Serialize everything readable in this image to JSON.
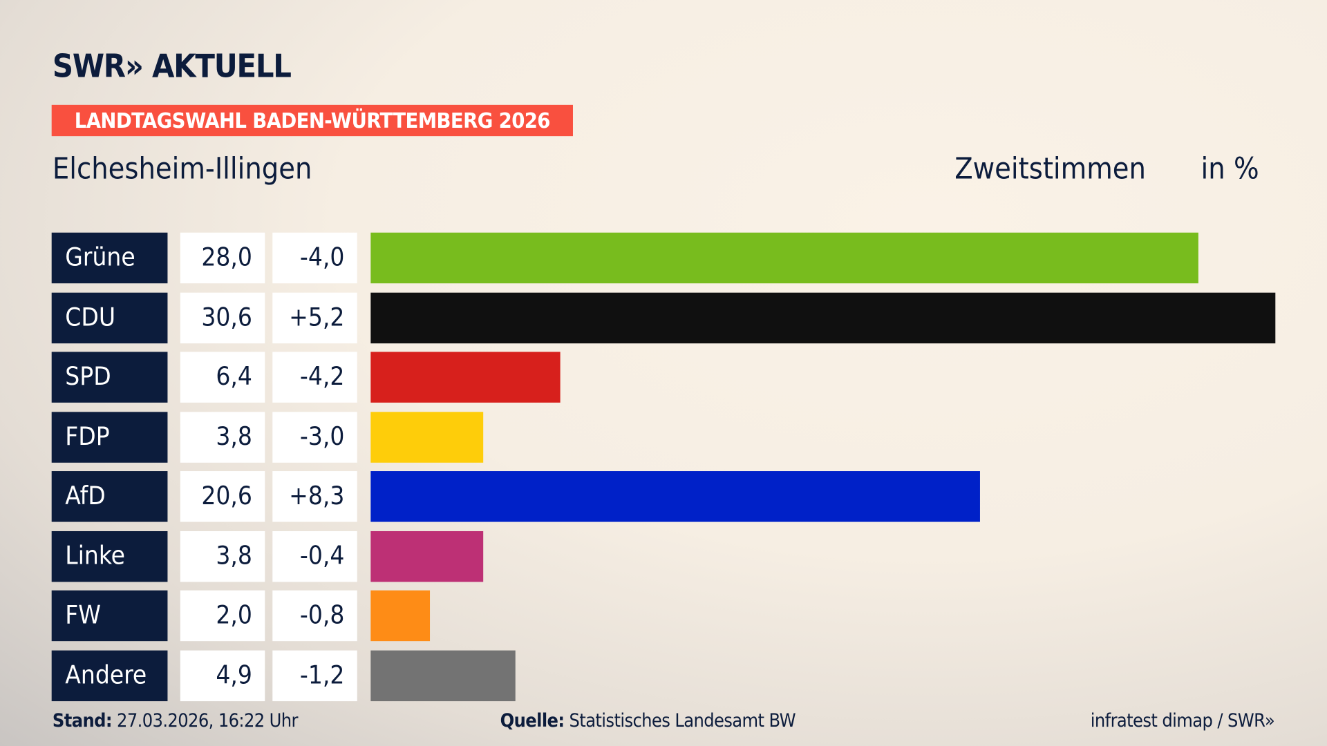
{
  "header": {
    "logo": "SWR» AKTUELL",
    "banner": "LANDTAGSWAHL BADEN-WÜRTTEMBERG 2026",
    "region": "Elchesheim-Illingen",
    "metric": "Zweitstimmen",
    "unit": "in %"
  },
  "chart_data": {
    "type": "bar",
    "orientation": "horizontal",
    "categories": [
      "Grüne",
      "CDU",
      "SPD",
      "FDP",
      "AfD",
      "Linke",
      "FW",
      "Andere"
    ],
    "values": [
      28.0,
      30.6,
      6.4,
      3.8,
      20.6,
      3.8,
      2.0,
      4.9
    ],
    "value_labels": [
      "28,0",
      "30,6",
      "6,4",
      "3,8",
      "20,6",
      "3,8",
      "2,0",
      "4,9"
    ],
    "diff_labels": [
      "-4,0",
      "+5,2",
      "-4,2",
      "-3,0",
      "+8,3",
      "-0,4",
      "-0,8",
      "-1,2"
    ],
    "colors": [
      "#78bc1e",
      "#101010",
      "#d7201c",
      "#fecd0a",
      "#0021c8",
      "#bd3075",
      "#fe8c16",
      "#737373"
    ],
    "grid": false
  },
  "footer": {
    "stand_label": "Stand:",
    "stand": "27.03.2026, 16:22 Uhr",
    "source_label": "Quelle:",
    "source": "Statistisches Landesamt BW",
    "credit": "infratest dimap / SWR»"
  }
}
